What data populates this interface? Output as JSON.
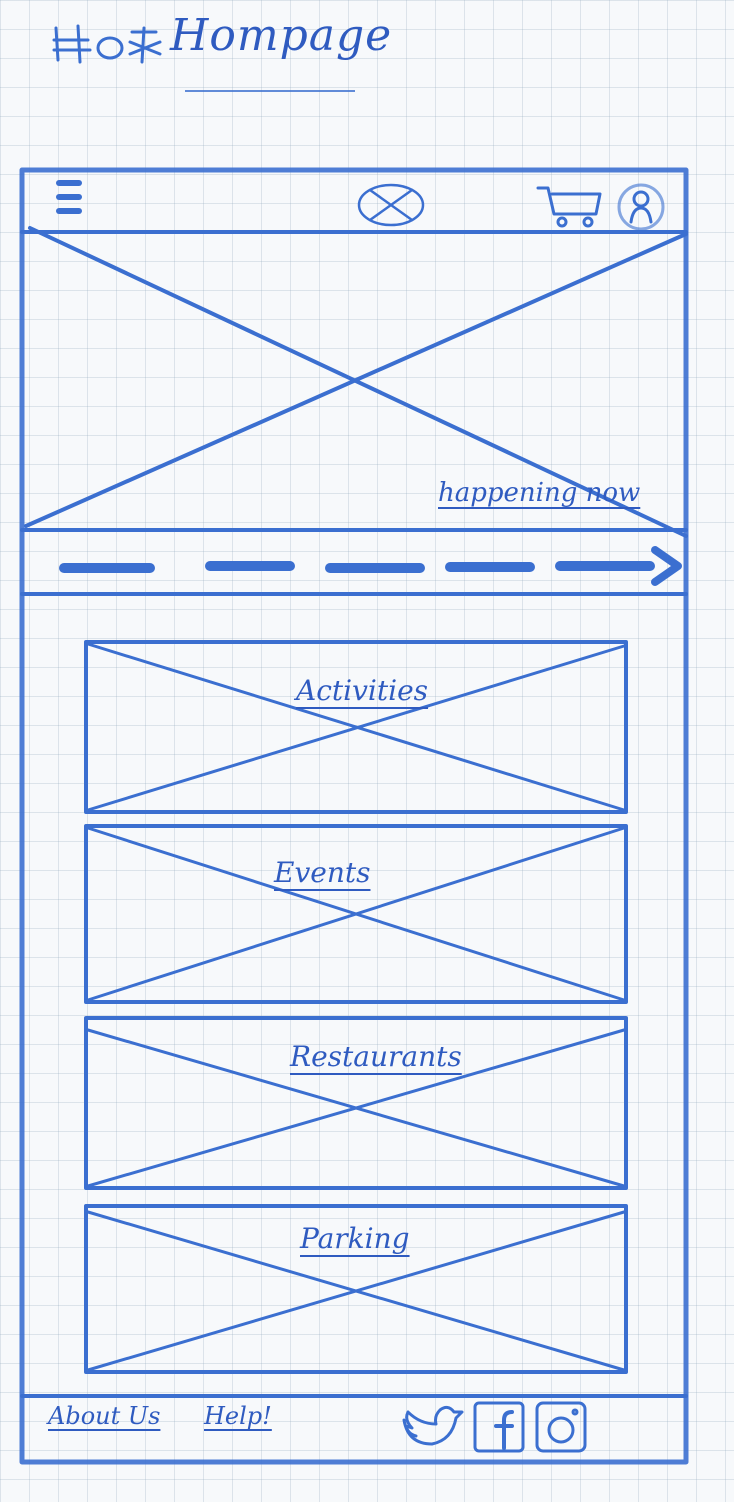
{
  "page": {
    "title": "Hompage"
  },
  "header": {
    "menu_icon": "hamburger-menu-icon",
    "logo_icon": "placeholder-logo",
    "cart_icon": "shopping-cart-icon",
    "profile_icon": "user-profile-icon"
  },
  "hero": {
    "label": "happening now"
  },
  "carousel": {
    "indicator_icon": "chevron-right-icon"
  },
  "categories": [
    {
      "label": "Activities"
    },
    {
      "label": "Events"
    },
    {
      "label": "Restaurants"
    },
    {
      "label": "Parking"
    }
  ],
  "footer": {
    "links": [
      {
        "label": "About Us"
      },
      {
        "label": "Help!"
      }
    ],
    "social": [
      "twitter-icon",
      "facebook-icon",
      "instagram-icon"
    ]
  },
  "colors": {
    "ink": "#3b6fd0",
    "paper": "#f7f9fb",
    "grid": "#b4c2d0"
  }
}
